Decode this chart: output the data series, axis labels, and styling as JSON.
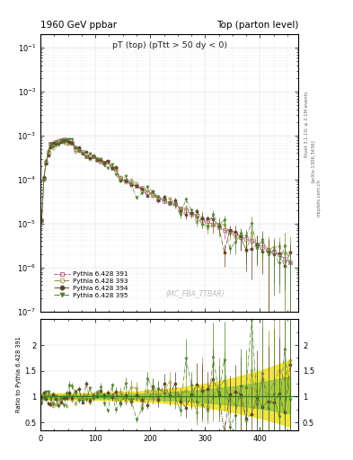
{
  "title_left": "1960 GeV ppbar",
  "title_right": "Top (parton level)",
  "plot_title": "pT (top) (pTtt > 50 dy < 0)",
  "watermark": "(MC_FBA_TTBAR)",
  "right_label1": "Rivet 3.1.10; ≥ 2.1M events",
  "right_label2": "[arXiv:1306.3436]",
  "right_label3": "mcplots.cern.ch",
  "ylabel_ratio": "Ratio to Pythia 6.428 391",
  "xlim": [
    0,
    470
  ],
  "ylim_main": [
    1e-07,
    0.2
  ],
  "ylim_ratio": [
    0.35,
    2.5
  ],
  "ratio_yticks": [
    0.5,
    1.0,
    1.5,
    2.0
  ],
  "series": [
    {
      "label": "Pythia 6.428 391",
      "color": "#b05080",
      "marker": "s",
      "filled": false,
      "ls": "--"
    },
    {
      "label": "Pythia 6.428 393",
      "color": "#909030",
      "marker": "o",
      "filled": false,
      "ls": "-."
    },
    {
      "label": "Pythia 6.428 394",
      "color": "#604020",
      "marker": "o",
      "filled": true,
      "ls": "-."
    },
    {
      "label": "Pythia 6.428 395",
      "color": "#508030",
      "marker": "v",
      "filled": true,
      "ls": "-."
    }
  ],
  "band_yellow": "#f0e020",
  "band_green": "#80c040",
  "ref_line_color": "#208020",
  "bg": "#ffffff"
}
